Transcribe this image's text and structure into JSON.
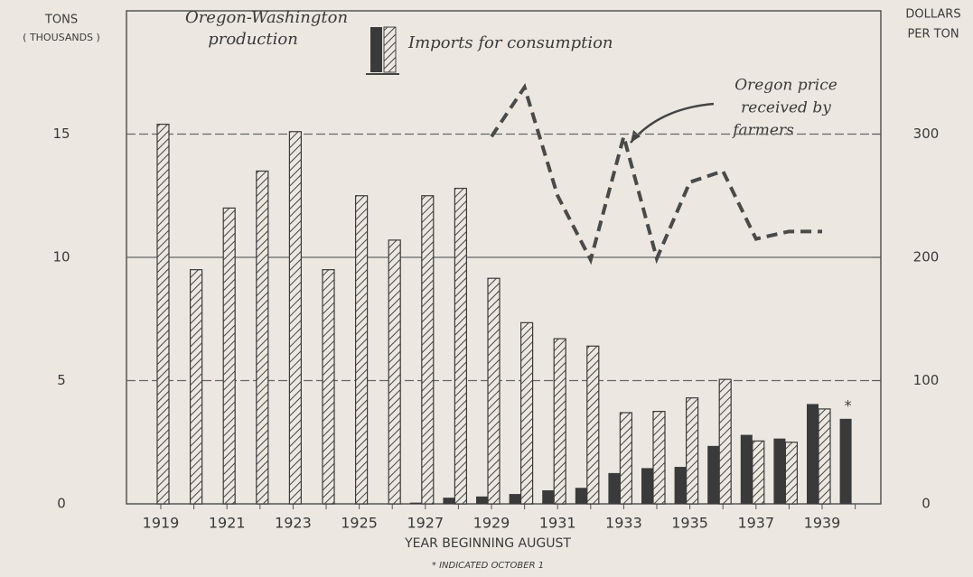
{
  "chart_data": {
    "type": "bar",
    "y_axis_label": [
      "TONS",
      "( THOUSANDS )"
    ],
    "y2_axis_label": [
      "DOLLARS",
      "PER TON"
    ],
    "x_axis_label": "YEAR BEGINNING AUGUST",
    "footnote": "* INDICATED OCTOBER 1",
    "asterisk": "*",
    "annotation": [
      "Oregon price",
      "received by",
      "farmers"
    ],
    "categories": [
      "1919",
      null,
      "1921",
      null,
      "1923",
      null,
      "1925",
      null,
      "1927",
      null,
      "1929",
      null,
      "1931",
      null,
      "1933",
      null,
      "1935",
      null,
      "1937",
      null,
      "1939",
      null
    ],
    "series": [
      {
        "name": [
          "Oregon-Washington",
          "production"
        ],
        "color": "#3a3a3a",
        "style": "solid",
        "values": [
          0,
          0,
          0,
          0,
          0,
          0,
          0,
          0,
          0.05,
          0.25,
          0.3,
          0.4,
          0.55,
          0.65,
          1.25,
          1.45,
          1.5,
          2.35,
          2.8,
          2.65,
          4.05,
          3.45
        ]
      },
      {
        "name": "Imports for consumption",
        "color": "#3a3a3a",
        "style": "hatched",
        "values": [
          15.4,
          9.5,
          12.0,
          13.5,
          15.1,
          9.5,
          12.5,
          10.7,
          12.5,
          12.8,
          9.15,
          7.35,
          6.7,
          6.4,
          3.7,
          3.75,
          4.3,
          5.05,
          2.55,
          2.5,
          3.85,
          null
        ]
      },
      {
        "name": "Oregon price received by farmers",
        "type": "line",
        "axis": "y2",
        "color": "#4a4a4a",
        "dashed": true,
        "values": [
          null,
          null,
          null,
          null,
          null,
          null,
          null,
          null,
          null,
          null,
          298,
          338,
          250,
          198,
          298,
          199,
          261,
          270,
          215,
          221,
          221,
          null
        ]
      }
    ],
    "ylim": [
      0,
      20
    ],
    "yticks": [
      0,
      5,
      10,
      15
    ],
    "y2lim": [
      0,
      400
    ],
    "y2ticks": [
      0,
      100,
      200,
      300
    ],
    "grid": true
  }
}
